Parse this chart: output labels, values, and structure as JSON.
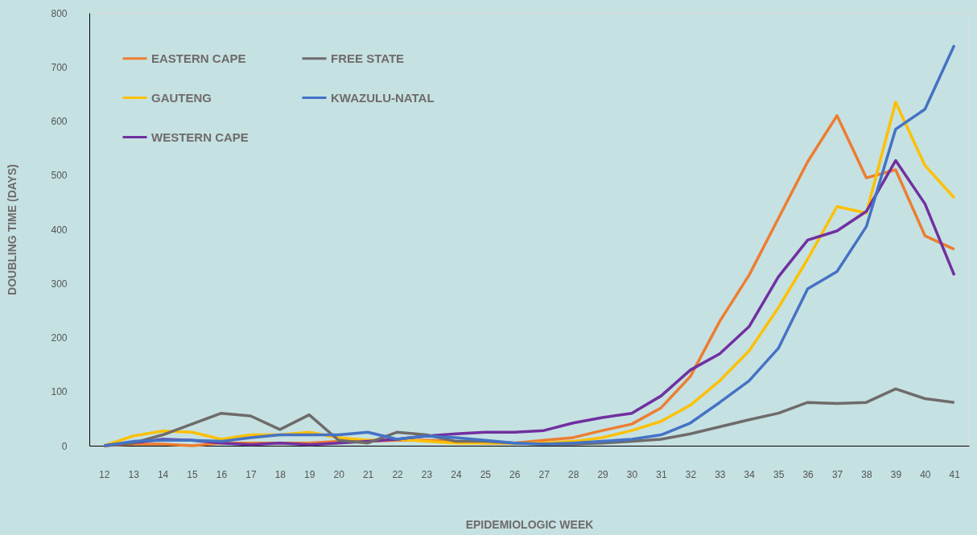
{
  "chart_data": {
    "type": "line",
    "xlabel": "EPIDEMIOLOGIC WEEK",
    "ylabel": "DOUBLING TIME (DAYS)",
    "categories": [
      "12",
      "13",
      "14",
      "15",
      "16",
      "17",
      "18",
      "19",
      "20",
      "21",
      "22",
      "23",
      "24",
      "25",
      "26",
      "27",
      "28",
      "29",
      "30",
      "31",
      "32",
      "33",
      "34",
      "35",
      "36",
      "37",
      "38",
      "39",
      "40",
      "41"
    ],
    "series": [
      {
        "name": "EASTERN CAPE",
        "color": "#ed7d31",
        "values": [
          0,
          3,
          3,
          0,
          5,
          5,
          5,
          5,
          8,
          8,
          10,
          10,
          8,
          5,
          5,
          10,
          15,
          28,
          40,
          70,
          128,
          230,
          315,
          420,
          525,
          610,
          495,
          510,
          388,
          363
        ]
      },
      {
        "name": "GAUTENG",
        "color": "#ffc000",
        "values": [
          0,
          18,
          27,
          25,
          12,
          20,
          20,
          25,
          15,
          10,
          12,
          8,
          5,
          5,
          5,
          5,
          8,
          15,
          28,
          45,
          75,
          120,
          175,
          255,
          345,
          442,
          430,
          635,
          518,
          458
        ]
      },
      {
        "name": "WESTERN CAPE",
        "color": "#7030a0",
        "values": [
          0,
          5,
          12,
          10,
          5,
          2,
          5,
          2,
          5,
          8,
          12,
          18,
          22,
          25,
          25,
          28,
          42,
          52,
          60,
          92,
          140,
          170,
          220,
          312,
          380,
          397,
          433,
          527,
          447,
          315
        ]
      },
      {
        "name": "FREE STATE",
        "color": "#6f6b6b",
        "values": [
          0,
          5,
          20,
          40,
          60,
          55,
          30,
          57,
          10,
          5,
          25,
          20,
          8,
          8,
          5,
          3,
          3,
          5,
          8,
          12,
          22,
          35,
          48,
          60,
          80,
          78,
          80,
          105,
          87,
          80
        ]
      },
      {
        "name": "KWAZULU-NATAL",
        "color": "#4472c4",
        "values": [
          0,
          8,
          10,
          10,
          8,
          15,
          20,
          20,
          20,
          25,
          12,
          18,
          15,
          10,
          5,
          3,
          5,
          8,
          12,
          20,
          42,
          80,
          120,
          180,
          290,
          322,
          405,
          585,
          622,
          740
        ]
      }
    ],
    "ylim": [
      0,
      800
    ],
    "yticks": [
      0,
      100,
      200,
      300,
      400,
      500,
      600,
      700,
      800
    ],
    "grid": false,
    "legend": "top left",
    "marker": "none",
    "line_style": "solid"
  }
}
